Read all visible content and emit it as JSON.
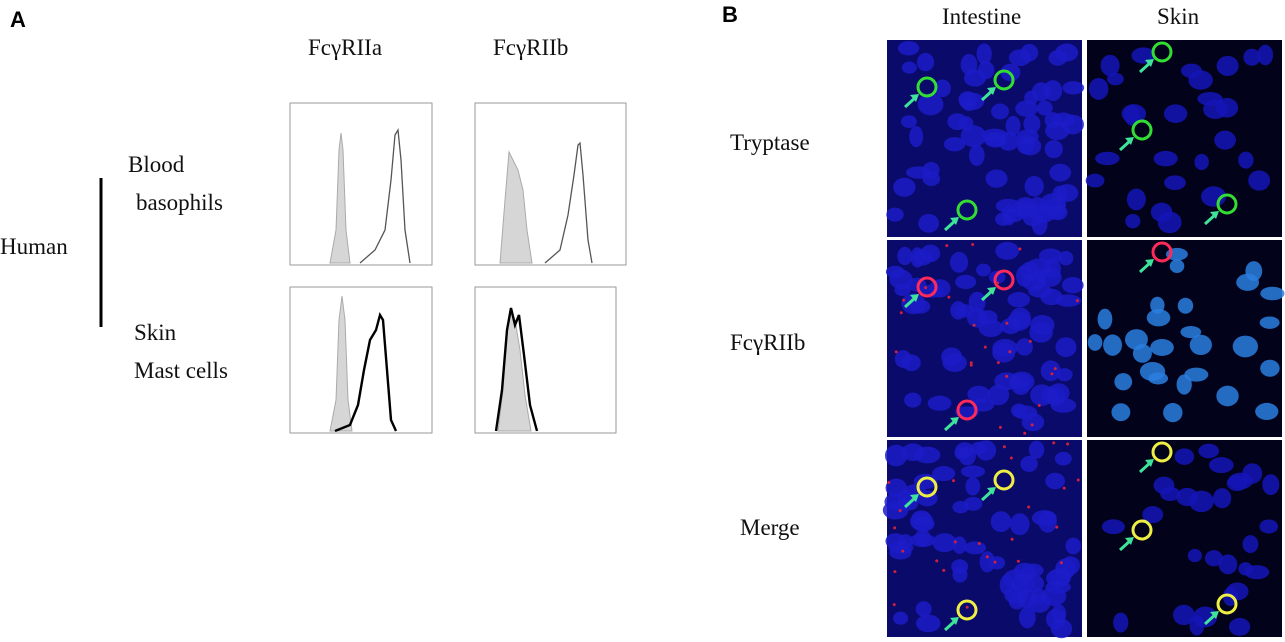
{
  "panels": [
    {
      "label": "A",
      "columns": [
        "FcγRIIa",
        "FcγRIIb"
      ],
      "group": "Human",
      "rows": [
        [
          "Blood",
          "basophils"
        ],
        [
          "Skin",
          "Mast cells"
        ]
      ]
    },
    {
      "label": "B",
      "columns": [
        "Intestine",
        "Skin"
      ],
      "rows": [
        "Tryptase",
        "FcγRIIb",
        "Merge"
      ]
    }
  ]
}
